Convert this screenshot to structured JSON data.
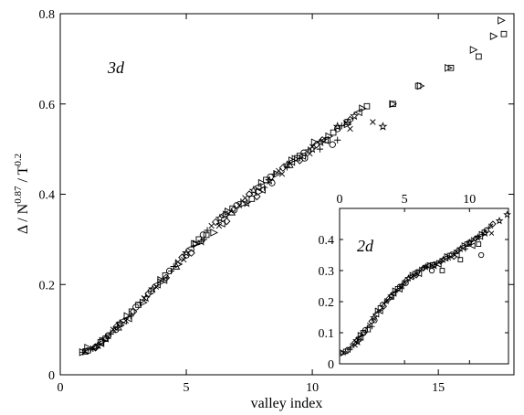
{
  "chart_data": [
    {
      "id": "main",
      "type": "scatter",
      "title": "",
      "panel_label": "3d",
      "xlabel": "valley index",
      "ylabel_parts": {
        "a": "Δ / N",
        "b": "0.87",
        "c": " / T",
        "d": "0.2"
      },
      "xlim": [
        0,
        18
      ],
      "ylim": [
        0,
        0.8
      ],
      "xticks": [
        0,
        5,
        10,
        15
      ],
      "yticks": [
        0,
        0.2,
        0.4,
        0.6,
        0.8
      ],
      "xtick_labels": [
        "0",
        "5",
        "10",
        "15"
      ],
      "ytick_labels": [
        "0",
        "0.2",
        "0.4",
        "0.6",
        "0.8"
      ],
      "grid": false,
      "curve": [
        [
          0.9,
          0.05
        ],
        [
          1.2,
          0.055
        ],
        [
          1.5,
          0.065
        ],
        [
          1.8,
          0.08
        ],
        [
          2.1,
          0.1
        ],
        [
          2.5,
          0.12
        ],
        [
          3.0,
          0.15
        ],
        [
          3.5,
          0.18
        ],
        [
          4.0,
          0.21
        ],
        [
          4.5,
          0.24
        ],
        [
          5.0,
          0.27
        ],
        [
          5.5,
          0.3
        ],
        [
          6.0,
          0.33
        ],
        [
          6.5,
          0.355
        ],
        [
          7.0,
          0.375
        ],
        [
          7.5,
          0.4
        ],
        [
          8.0,
          0.425
        ],
        [
          8.5,
          0.445
        ],
        [
          9.0,
          0.465
        ],
        [
          9.5,
          0.485
        ],
        [
          10.0,
          0.505
        ],
        [
          10.5,
          0.52
        ],
        [
          11.0,
          0.545
        ],
        [
          11.5,
          0.565
        ],
        [
          12.0,
          0.59
        ],
        [
          12.5,
          0.605
        ],
        [
          13.0,
          0.625
        ],
        [
          13.5,
          0.645
        ],
        [
          14.0,
          0.66
        ],
        [
          14.5,
          0.675
        ],
        [
          15.0,
          0.69
        ],
        [
          15.5,
          0.705
        ],
        [
          16.0,
          0.72
        ],
        [
          16.5,
          0.74
        ],
        [
          17.0,
          0.765
        ],
        [
          17.5,
          0.79
        ]
      ],
      "series": [
        {
          "marker": "triangle-right",
          "points": [
            [
              1.1,
              0.06
            ],
            [
              1.7,
              0.075
            ],
            [
              2.4,
              0.11
            ],
            [
              3.3,
              0.16
            ],
            [
              4.0,
              0.205
            ],
            [
              4.7,
              0.245
            ],
            [
              5.4,
              0.29
            ],
            [
              6.1,
              0.315
            ],
            [
              6.6,
              0.355
            ],
            [
              7.3,
              0.38
            ],
            [
              7.9,
              0.405
            ],
            [
              8.6,
              0.445
            ],
            [
              9.2,
              0.475
            ],
            [
              10.1,
              0.515
            ],
            [
              11.4,
              0.555
            ],
            [
              13.2,
              0.6
            ],
            [
              14.3,
              0.64
            ],
            [
              15.4,
              0.68
            ],
            [
              16.4,
              0.72
            ],
            [
              17.2,
              0.75
            ],
            [
              17.5,
              0.785
            ]
          ]
        },
        {
          "marker": "square",
          "points": [
            [
              1.6,
              0.072
            ],
            [
              3.1,
              0.155
            ],
            [
              5.8,
              0.31
            ],
            [
              7.6,
              0.39
            ],
            [
              9.4,
              0.48
            ],
            [
              10.6,
              0.52
            ],
            [
              11.4,
              0.56
            ],
            [
              13.2,
              0.6
            ],
            [
              14.2,
              0.64
            ],
            [
              15.5,
              0.68
            ],
            [
              16.6,
              0.705
            ],
            [
              17.6,
              0.755
            ]
          ]
        },
        {
          "marker": "circle",
          "points": [
            [
              2.2,
              0.1
            ],
            [
              3.6,
              0.185
            ],
            [
              5.0,
              0.265
            ],
            [
              6.9,
              0.365
            ],
            [
              8.4,
              0.425
            ],
            [
              9.7,
              0.48
            ],
            [
              10.8,
              0.51
            ]
          ]
        },
        {
          "marker": "plus",
          "points": [
            [
              0.9,
              0.05
            ],
            [
              1.3,
              0.058
            ],
            [
              2.0,
              0.09
            ],
            [
              2.8,
              0.13
            ],
            [
              4.4,
              0.23
            ],
            [
              5.7,
              0.3
            ],
            [
              8.1,
              0.415
            ],
            [
              9.0,
              0.46
            ],
            [
              10.3,
              0.5
            ],
            [
              11.0,
              0.52
            ]
          ]
        },
        {
          "marker": "x",
          "points": [
            [
              1.0,
              0.052
            ],
            [
              1.9,
              0.085
            ],
            [
              2.6,
              0.12
            ],
            [
              3.8,
              0.195
            ],
            [
              4.9,
              0.255
            ],
            [
              6.3,
              0.33
            ],
            [
              7.1,
              0.375
            ],
            [
              8.8,
              0.445
            ],
            [
              9.9,
              0.49
            ],
            [
              11.5,
              0.545
            ],
            [
              12.4,
              0.56
            ]
          ]
        },
        {
          "marker": "diamond",
          "points": [
            [
              1.4,
              0.06
            ],
            [
              2.9,
              0.14
            ],
            [
              4.2,
              0.215
            ],
            [
              5.2,
              0.27
            ],
            [
              6.6,
              0.34
            ],
            [
              7.8,
              0.395
            ],
            [
              9.5,
              0.475
            ],
            [
              10.4,
              0.52
            ]
          ]
        },
        {
          "marker": "star",
          "points": [
            [
              1.8,
              0.08
            ],
            [
              3.4,
              0.17
            ],
            [
              5.6,
              0.295
            ],
            [
              7.4,
              0.38
            ],
            [
              8.3,
              0.43
            ],
            [
              10.0,
              0.5
            ],
            [
              11.0,
              0.55
            ],
            [
              12.8,
              0.55
            ]
          ]
        },
        {
          "marker": "triangle-up",
          "points": [
            [
              2.3,
              0.105
            ],
            [
              4.6,
              0.24
            ],
            [
              6.8,
              0.36
            ],
            [
              9.1,
              0.465
            ]
          ]
        },
        {
          "marker": "triangle-left",
          "points": [
            [
              2.7,
              0.125
            ],
            [
              4.1,
              0.21
            ],
            [
              6.4,
              0.335
            ],
            [
              8.0,
              0.41
            ],
            [
              9.6,
              0.485
            ]
          ]
        }
      ]
    },
    {
      "id": "inset",
      "type": "scatter",
      "panel_label": "2d",
      "xlim": [
        0,
        13
      ],
      "ylim": [
        0,
        0.5
      ],
      "xticks": [
        0,
        5,
        10
      ],
      "yticks": [
        0,
        0.1,
        0.2,
        0.3,
        0.4
      ],
      "xtick_labels": [
        "0",
        "5",
        "10"
      ],
      "ytick_labels": [
        "0",
        "0.1",
        "0.2",
        "0.3",
        "0.4"
      ],
      "grid": false,
      "curve": [
        [
          0.3,
          0.035
        ],
        [
          0.8,
          0.05
        ],
        [
          1.3,
          0.075
        ],
        [
          1.8,
          0.1
        ],
        [
          2.3,
          0.125
        ],
        [
          2.8,
          0.16
        ],
        [
          3.3,
          0.19
        ],
        [
          3.8,
          0.21
        ],
        [
          4.3,
          0.235
        ],
        [
          4.8,
          0.255
        ],
        [
          5.3,
          0.275
        ],
        [
          5.8,
          0.29
        ],
        [
          6.3,
          0.305
        ],
        [
          6.8,
          0.315
        ],
        [
          7.3,
          0.32
        ],
        [
          7.8,
          0.33
        ],
        [
          8.3,
          0.345
        ],
        [
          8.8,
          0.355
        ],
        [
          9.3,
          0.37
        ],
        [
          9.8,
          0.385
        ],
        [
          10.3,
          0.4
        ],
        [
          10.8,
          0.41
        ],
        [
          11.3,
          0.43
        ],
        [
          11.8,
          0.45
        ],
        [
          12.3,
          0.47
        ],
        [
          12.9,
          0.48
        ]
      ],
      "series": [
        {
          "marker": "triangle-left",
          "points": [
            [
              1.6,
              0.085
            ],
            [
              3.1,
              0.17
            ],
            [
              4.6,
              0.24
            ],
            [
              6.1,
              0.29
            ],
            [
              7.6,
              0.32
            ],
            [
              9.0,
              0.35
            ],
            [
              10.2,
              0.38
            ]
          ]
        },
        {
          "marker": "square",
          "points": [
            [
              2.2,
              0.11
            ],
            [
              4.0,
              0.215
            ],
            [
              7.9,
              0.3
            ],
            [
              9.3,
              0.335
            ],
            [
              10.7,
              0.385
            ]
          ]
        },
        {
          "marker": "circle",
          "points": [
            [
              2.7,
              0.14
            ],
            [
              5.1,
              0.26
            ],
            [
              7.1,
              0.3
            ],
            [
              10.9,
              0.35
            ]
          ]
        },
        {
          "marker": "x",
          "points": [
            [
              0.3,
              0.035
            ],
            [
              1.2,
              0.06
            ],
            [
              3.6,
              0.2
            ],
            [
              5.6,
              0.28
            ],
            [
              8.4,
              0.34
            ],
            [
              11.7,
              0.42
            ]
          ]
        },
        {
          "marker": "plus",
          "points": [
            [
              0.8,
              0.045
            ],
            [
              2.5,
              0.12
            ],
            [
              4.3,
              0.23
            ],
            [
              6.5,
              0.31
            ],
            [
              9.7,
              0.37
            ]
          ]
        },
        {
          "marker": "diamond",
          "points": [
            [
              1.9,
              0.1
            ],
            [
              3.4,
              0.185
            ],
            [
              5.9,
              0.285
            ],
            [
              8.8,
              0.345
            ]
          ]
        },
        {
          "marker": "star",
          "points": [
            [
              1.4,
              0.07
            ],
            [
              4.8,
              0.25
            ],
            [
              7.3,
              0.315
            ],
            [
              10.0,
              0.39
            ],
            [
              11.2,
              0.42
            ],
            [
              12.3,
              0.46
            ],
            [
              12.9,
              0.48
            ]
          ]
        }
      ]
    }
  ]
}
